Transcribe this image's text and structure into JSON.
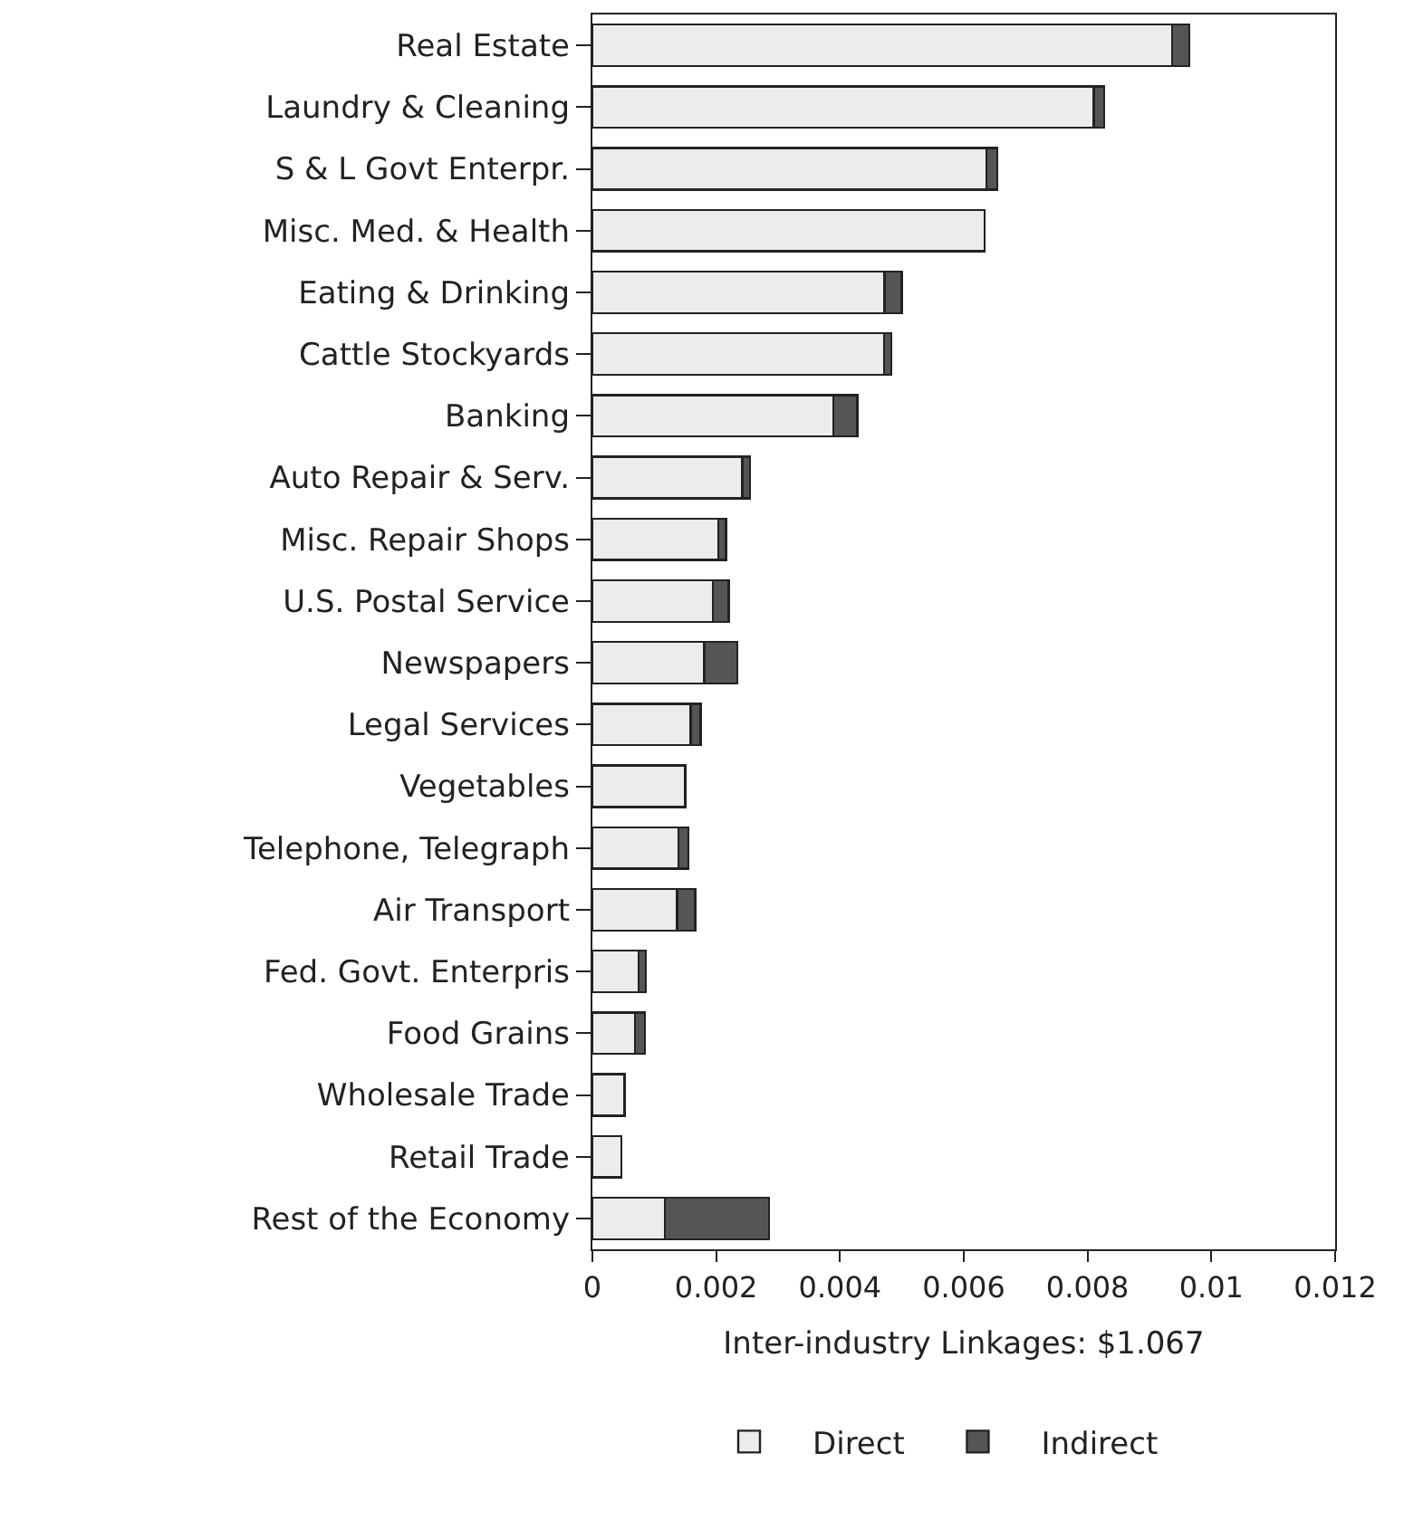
{
  "chart_data": {
    "type": "bar",
    "orientation": "horizontal",
    "stacked": true,
    "xlabel": "Inter-industry Linkages: $1.067",
    "categories": [
      "Real Estate",
      "Laundry & Cleaning",
      "S & L Govt Enterpr.",
      "Misc. Med. & Health",
      "Eating & Drinking",
      "Cattle Stockyards",
      "Banking",
      "Auto Repair & Serv.",
      "Misc. Repair Shops",
      "U.S. Postal Service",
      "Newspapers",
      "Legal Services",
      "Vegetables",
      "Telephone, Telegraph",
      "Air Transport",
      "Fed. Govt. Enterpris",
      "Food Grains",
      "Wholesale Trade",
      "Retail Trade",
      "Rest of the Economy"
    ],
    "series": [
      {
        "name": "Direct",
        "color": "#ececec",
        "values": [
          0.00937,
          0.0081,
          0.00637,
          0.00634,
          0.00472,
          0.00471,
          0.00389,
          0.00242,
          0.00203,
          0.00195,
          0.00181,
          0.00159,
          0.0015,
          0.00139,
          0.00137,
          0.00075,
          0.00069,
          0.00052,
          0.00047,
          0.00117
        ]
      },
      {
        "name": "Indirect",
        "color": "#555555",
        "values": [
          0.00027,
          0.00017,
          0.00017,
          null,
          0.00028,
          0.00012,
          0.00039,
          0.00013,
          0.00013,
          0.00025,
          0.00053,
          0.00016,
          null,
          0.00016,
          0.00029,
          0.00011,
          0.00016,
          null,
          null,
          0.00168
        ]
      }
    ],
    "xlim": [
      0,
      0.012
    ],
    "xticks": [
      0,
      0.002,
      0.004,
      0.006,
      0.008,
      0.01,
      0.012
    ],
    "grid": false,
    "legend": "bottom"
  }
}
